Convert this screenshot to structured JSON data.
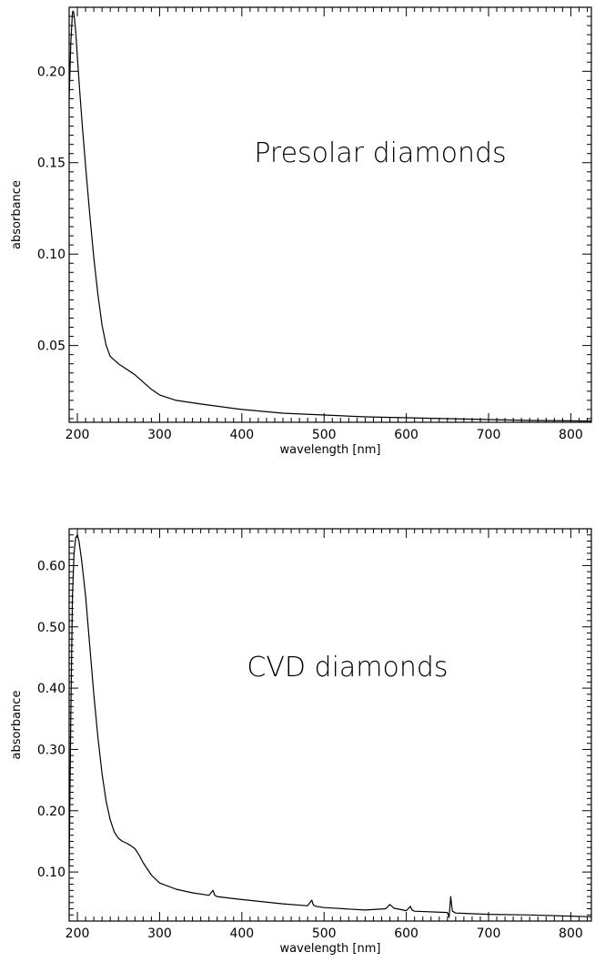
{
  "chart_data": [
    {
      "type": "line",
      "annotation": "Presolar diamonds",
      "xlabel": "wavelength [nm]",
      "ylabel": "absorbance",
      "xlim": [
        190,
        825
      ],
      "ylim": [
        0.008,
        0.235
      ],
      "xticks": [
        200,
        300,
        400,
        500,
        600,
        700,
        800
      ],
      "xtick_labels": [
        "200",
        "300",
        "400",
        "500",
        "600",
        "700",
        "800"
      ],
      "yticks": [
        0.05,
        0.1,
        0.15,
        0.2
      ],
      "ytick_labels": [
        "0.05",
        "0.10",
        "0.15",
        "0.20"
      ],
      "grid": false,
      "series": [
        {
          "x": [
            190,
            192,
            194,
            195,
            196,
            198,
            200,
            203,
            206,
            210,
            215,
            220,
            225,
            230,
            235,
            240,
            250,
            260,
            270,
            280,
            290,
            300,
            320,
            350,
            400,
            450,
            500,
            550,
            600,
            650,
            700,
            750,
            800,
            825
          ],
          "y": [
            0.185,
            0.215,
            0.232,
            0.233,
            0.231,
            0.222,
            0.208,
            0.188,
            0.17,
            0.148,
            0.122,
            0.098,
            0.078,
            0.061,
            0.05,
            0.044,
            0.04,
            0.037,
            0.034,
            0.03,
            0.026,
            0.023,
            0.02,
            0.018,
            0.015,
            0.013,
            0.012,
            0.011,
            0.0105,
            0.01,
            0.0095,
            0.009,
            0.0088,
            0.0087
          ]
        }
      ]
    },
    {
      "type": "line",
      "annotation": "CVD diamonds",
      "xlabel": "wavelength [nm]",
      "ylabel": "absorbance",
      "xlim": [
        190,
        825
      ],
      "ylim": [
        0.02,
        0.66
      ],
      "xticks": [
        200,
        300,
        400,
        500,
        600,
        700,
        800
      ],
      "xtick_labels": [
        "200",
        "300",
        "400",
        "500",
        "600",
        "700",
        "800"
      ],
      "yticks": [
        0.1,
        0.2,
        0.3,
        0.4,
        0.5,
        0.6
      ],
      "ytick_labels": [
        "0.10",
        "0.20",
        "0.30",
        "0.40",
        "0.50",
        "0.60"
      ],
      "grid": false,
      "series": [
        {
          "x": [
            190,
            192,
            194,
            196,
            198,
            200,
            202,
            205,
            210,
            215,
            220,
            225,
            230,
            235,
            240,
            245,
            250,
            255,
            260,
            265,
            270,
            275,
            280,
            290,
            300,
            320,
            340,
            360,
            365,
            367,
            370,
            400,
            450,
            480,
            485,
            487,
            490,
            500,
            550,
            575,
            580,
            585,
            600,
            605,
            607,
            610,
            650,
            652,
            654,
            656,
            660,
            700,
            750,
            800,
            825
          ],
          "y": [
            0.11,
            0.35,
            0.55,
            0.62,
            0.645,
            0.65,
            0.64,
            0.61,
            0.55,
            0.47,
            0.39,
            0.32,
            0.26,
            0.215,
            0.185,
            0.165,
            0.155,
            0.15,
            0.147,
            0.143,
            0.138,
            0.128,
            0.115,
            0.095,
            0.082,
            0.072,
            0.066,
            0.062,
            0.07,
            0.062,
            0.06,
            0.055,
            0.048,
            0.045,
            0.054,
            0.046,
            0.044,
            0.042,
            0.038,
            0.04,
            0.047,
            0.041,
            0.037,
            0.044,
            0.038,
            0.036,
            0.034,
            0.026,
            0.06,
            0.036,
            0.033,
            0.031,
            0.03,
            0.028,
            0.027
          ]
        }
      ]
    }
  ]
}
